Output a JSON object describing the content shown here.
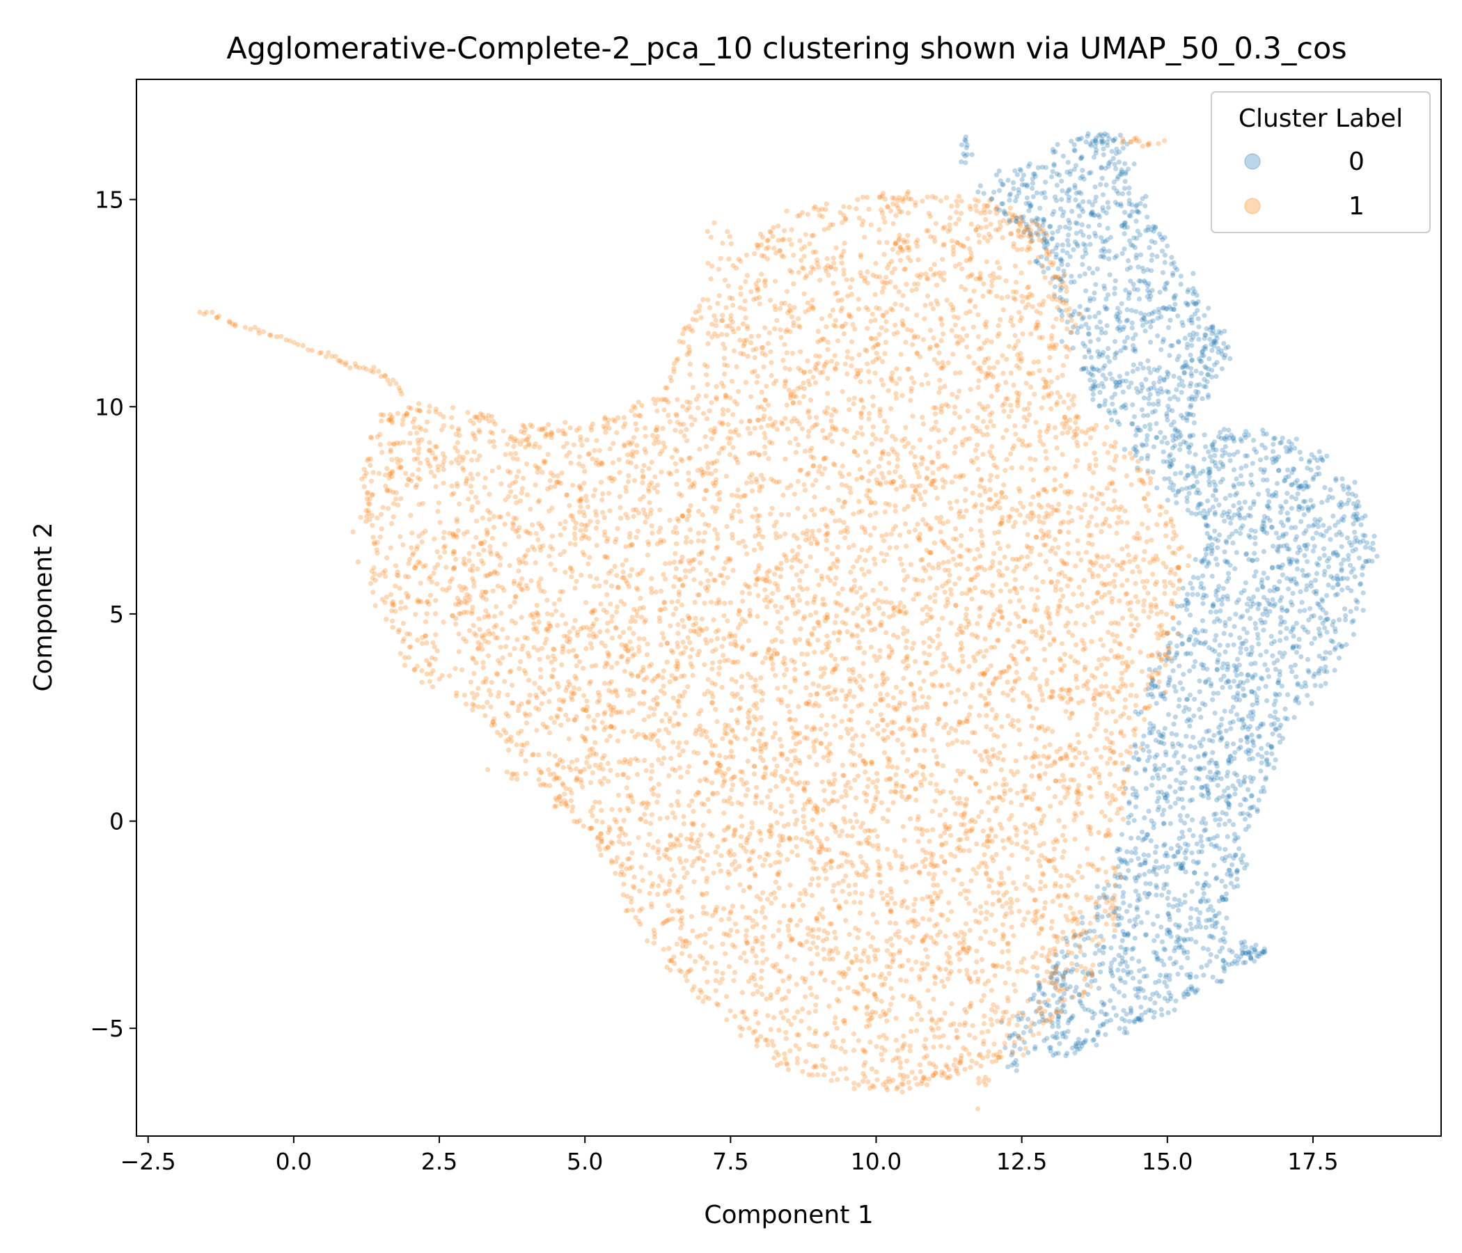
{
  "chart_data": {
    "type": "scatter",
    "title": "Agglomerative-Complete-2_pca_10 clustering shown via UMAP_50_0.3_cos",
    "xlabel": "Component 1",
    "ylabel": "Component 2",
    "xlim": [
      -2.7,
      19.7
    ],
    "ylim": [
      -7.6,
      17.9
    ],
    "x_ticks": [
      -2.5,
      0.0,
      2.5,
      5.0,
      7.5,
      10.0,
      12.5,
      15.0,
      17.5
    ],
    "x_tick_labels": [
      "−2.5",
      "0.0",
      "2.5",
      "5.0",
      "7.5",
      "10.0",
      "12.5",
      "15.0",
      "17.5"
    ],
    "y_ticks": [
      -5,
      0,
      5,
      10,
      15
    ],
    "y_tick_labels": [
      "−5",
      "0",
      "5",
      "10",
      "15"
    ],
    "grid": false,
    "legend": {
      "title": "Cluster Label",
      "placement": "top-right"
    },
    "point_alpha": 0.3,
    "series": [
      {
        "name": "0",
        "color": "#1f77b4",
        "approx_region_outline": [
          [
            11.8,
            15.2
          ],
          [
            13.5,
            16.5
          ],
          [
            14.1,
            16.5
          ],
          [
            14.3,
            15.6
          ],
          [
            15.8,
            12.0
          ],
          [
            16.0,
            11.2
          ],
          [
            15.2,
            9.3
          ],
          [
            16.7,
            9.4
          ],
          [
            18.0,
            8.5
          ],
          [
            18.6,
            6.5
          ],
          [
            18.0,
            4.0
          ],
          [
            17.0,
            2.5
          ],
          [
            16.3,
            -1.0
          ],
          [
            15.8,
            -2.8
          ],
          [
            16.6,
            -3.2
          ],
          [
            15.0,
            -4.5
          ],
          [
            13.5,
            -5.5
          ],
          [
            12.3,
            -5.9
          ],
          [
            12.4,
            -4.8
          ],
          [
            13.2,
            -3.2
          ],
          [
            14.2,
            -1.0
          ],
          [
            14.5,
            2.5
          ],
          [
            15.3,
            5.5
          ],
          [
            15.8,
            7.0
          ],
          [
            14.6,
            8.5
          ],
          [
            13.7,
            10.5
          ],
          [
            13.2,
            12.5
          ],
          [
            12.6,
            14.2
          ],
          [
            11.8,
            15.2
          ]
        ],
        "extra_clusters": [
          [
            11.5,
            16.2,
            0.08,
            0.2,
            12
          ],
          [
            16.5,
            -3.2,
            0.12,
            0.08,
            15
          ]
        ],
        "point_count": 2600
      },
      {
        "name": "1",
        "color": "#ff7f0e",
        "approx_region_outline": [
          [
            1.2,
            8.3
          ],
          [
            1.6,
            9.8
          ],
          [
            2.3,
            10.0
          ],
          [
            4.0,
            9.5
          ],
          [
            5.2,
            9.5
          ],
          [
            6.3,
            10.3
          ],
          [
            6.9,
            12.3
          ],
          [
            8.3,
            14.5
          ],
          [
            10.0,
            15.1
          ],
          [
            11.5,
            15.1
          ],
          [
            12.8,
            14.4
          ],
          [
            13.3,
            12.5
          ],
          [
            13.2,
            10.5
          ],
          [
            14.6,
            8.3
          ],
          [
            15.3,
            6.5
          ],
          [
            15.0,
            4.0
          ],
          [
            14.3,
            1.5
          ],
          [
            14.1,
            -2.0
          ],
          [
            13.6,
            -4.0
          ],
          [
            12.4,
            -5.6
          ],
          [
            11.0,
            -6.2
          ],
          [
            10.3,
            -6.5
          ],
          [
            8.5,
            -6.0
          ],
          [
            7.0,
            -4.2
          ],
          [
            6.0,
            -2.7
          ],
          [
            5.1,
            -0.2
          ],
          [
            4.5,
            0.5
          ],
          [
            3.8,
            1.8
          ],
          [
            2.0,
            3.8
          ],
          [
            1.3,
            6.0
          ],
          [
            1.2,
            8.3
          ]
        ],
        "tail_points": [
          [
            -1.6,
            12.3
          ],
          [
            -1.0,
            12.0
          ],
          [
            -0.3,
            11.7
          ],
          [
            0.5,
            11.3
          ],
          [
            1.0,
            11.0
          ],
          [
            1.5,
            10.8
          ],
          [
            1.9,
            10.3
          ]
        ],
        "extra_clusters": [
          [
            7.3,
            13.8,
            0.1,
            0.3,
            14
          ],
          [
            14.5,
            16.4,
            0.18,
            0.08,
            14
          ],
          [
            11.8,
            -6.2,
            0.05,
            0.2,
            8
          ],
          [
            3.8,
            1.1,
            0.15,
            0.1,
            8
          ]
        ],
        "point_count": 6500
      }
    ]
  }
}
